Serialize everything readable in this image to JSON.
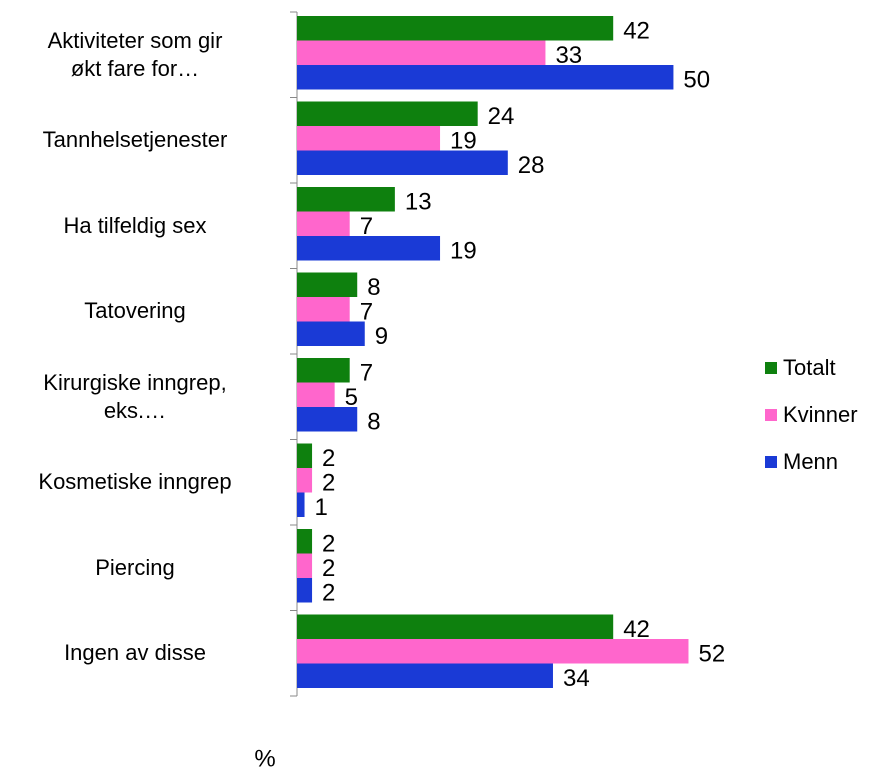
{
  "chart_data": {
    "type": "barh",
    "categories": [
      "Aktiviteter som gir\nøkt fare for…",
      "Tannhelsetjenester",
      "Ha tilfeldig sex",
      "Tatovering",
      "Kirurgiske inngrep,\neks.…",
      "Kosmetiske inngrep",
      "Piercing",
      "Ingen av disse"
    ],
    "series": [
      {
        "name": "Totalt",
        "color": "#0e800e",
        "values": [
          42,
          24,
          13,
          8,
          7,
          2,
          2,
          42
        ]
      },
      {
        "name": "Kvinner",
        "color": "#ff66cc",
        "values": [
          33,
          19,
          7,
          7,
          5,
          2,
          2,
          52
        ]
      },
      {
        "name": "Menn",
        "color": "#1a3ad6",
        "values": [
          50,
          28,
          19,
          9,
          8,
          1,
          2,
          34
        ]
      }
    ],
    "xlabel": "%",
    "xlim": [
      0,
      70
    ],
    "legend": "right"
  }
}
